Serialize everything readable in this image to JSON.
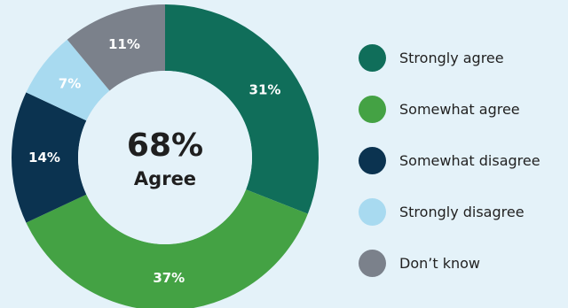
{
  "chart_data": {
    "type": "pie",
    "categories": [
      "Strongly agree",
      "Somewhat agree",
      "Somewhat disagree",
      "Strongly disagree",
      "Don’t know"
    ],
    "values": [
      31,
      37,
      14,
      7,
      11
    ],
    "value_labels": [
      "31%",
      "37%",
      "14%",
      "7%",
      "11%"
    ],
    "colors": [
      "#106e5a",
      "#44a244",
      "#0b3350",
      "#a8daf0",
      "#7b818b"
    ],
    "center_value": "68%",
    "center_caption": "Agree",
    "donut": true,
    "legend_placement": "right",
    "start_angle": "top",
    "direction": "clockwise"
  }
}
